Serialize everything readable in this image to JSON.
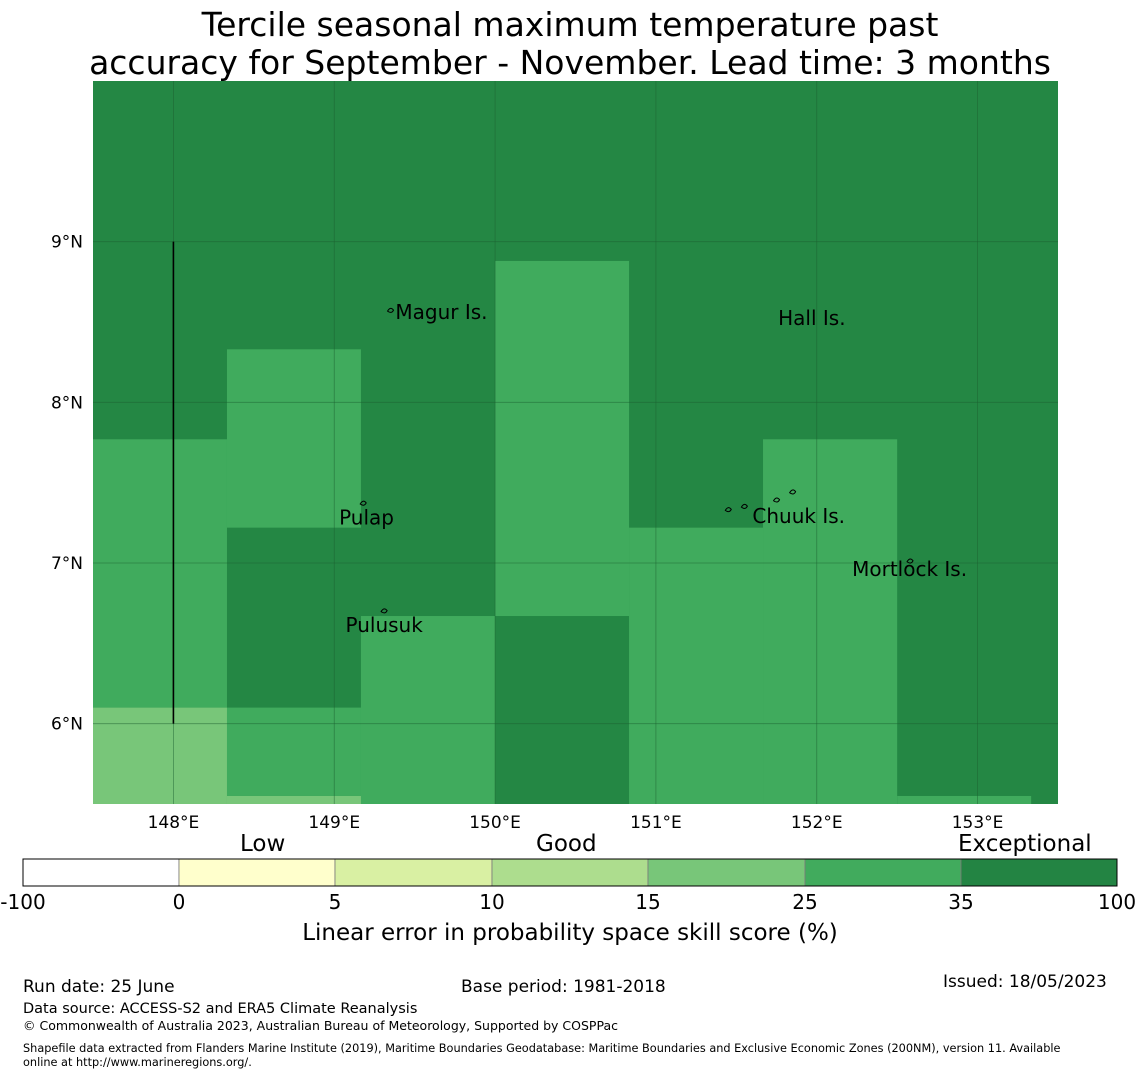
{
  "title_lines": [
    "Tercile seasonal maximum temperature past",
    "accuracy for September - November. Lead time: 3 months"
  ],
  "map": {
    "lon_range": [
      147.5,
      153.5
    ],
    "lat_range": [
      5.5,
      10.0
    ],
    "lon_ticks": [
      {
        "value": 148,
        "label": "148°E"
      },
      {
        "value": 149,
        "label": "149°E"
      },
      {
        "value": 150,
        "label": "150°E"
      },
      {
        "value": 151,
        "label": "151°E"
      },
      {
        "value": 152,
        "label": "152°E"
      },
      {
        "value": 153,
        "label": "153°E"
      }
    ],
    "lat_ticks": [
      {
        "value": 9,
        "label": "9°N"
      },
      {
        "value": 8,
        "label": "8°N"
      },
      {
        "value": 7,
        "label": "7°N"
      },
      {
        "value": 6,
        "label": "6°N"
      }
    ],
    "grid": true,
    "background_color": "#248744",
    "cells": [
      {
        "lon": [
          147.5,
          148.333
        ],
        "lat": [
          6.1,
          7.77
        ],
        "color": "#40ab5d"
      },
      {
        "lon": [
          148.333,
          149.166
        ],
        "lat": [
          7.22,
          8.33
        ],
        "color": "#40ab5d"
      },
      {
        "lon": [
          149.166,
          150.0
        ],
        "lat": [
          5.5,
          6.67
        ],
        "color": "#40ab5d"
      },
      {
        "lon": [
          148.333,
          149.166
        ],
        "lat": [
          5.55,
          6.1
        ],
        "color": "#40ab5d"
      },
      {
        "lon": [
          150.0,
          150.833
        ],
        "lat": [
          6.67,
          8.88
        ],
        "color": "#40ab5d"
      },
      {
        "lon": [
          150.833,
          151.666
        ],
        "lat": [
          5.5,
          7.22
        ],
        "color": "#40ab5d"
      },
      {
        "lon": [
          151.666,
          152.5
        ],
        "lat": [
          5.5,
          7.77
        ],
        "color": "#40ab5d"
      },
      {
        "lon": [
          152.5,
          153.333
        ],
        "lat": [
          5.5,
          5.55
        ],
        "color": "#40ab5d"
      },
      {
        "lon": [
          147.5,
          148.333
        ],
        "lat": [
          5.5,
          6.1
        ],
        "color": "#78c679"
      },
      {
        "lon": [
          148.333,
          149.166
        ],
        "lat": [
          5.5,
          5.55
        ],
        "color": "#78c679"
      }
    ],
    "boundary_line": {
      "lon": 148.0,
      "lat": [
        6.0,
        9.0
      ]
    },
    "places": [
      {
        "name": "Magur Is.",
        "lon": 149.38,
        "lat": 8.52
      },
      {
        "name": "Hall Is.",
        "lon": 151.76,
        "lat": 8.48
      },
      {
        "name": "Pulap",
        "lon": 149.03,
        "lat": 7.24
      },
      {
        "name": "Chuuk Is.",
        "lon": 151.6,
        "lat": 7.25
      },
      {
        "name": "Mortlock Is.",
        "lon": 152.22,
        "lat": 6.92
      },
      {
        "name": "Pulusuk",
        "lon": 149.07,
        "lat": 6.57
      }
    ]
  },
  "colorbar": {
    "categories": [
      {
        "label": "Low"
      },
      {
        "label": "Good"
      },
      {
        "label": "Exceptional"
      }
    ],
    "bins": [
      {
        "from": "-100",
        "to": "0",
        "color": "#ffffff"
      },
      {
        "from": "0",
        "to": "5",
        "color": "#ffffcc"
      },
      {
        "from": "5",
        "to": "10",
        "color": "#d9f0a3"
      },
      {
        "from": "10",
        "to": "15",
        "color": "#addd8e"
      },
      {
        "from": "15",
        "to": "25",
        "color": "#78c679"
      },
      {
        "from": "25",
        "to": "35",
        "color": "#41ab5d"
      },
      {
        "from": "35",
        "to": "100",
        "color": "#238443"
      }
    ],
    "tick_labels": [
      "-100",
      "0",
      "5",
      "10",
      "15",
      "25",
      "35",
      "100"
    ],
    "label": "Linear error in probability space skill score (%)"
  },
  "footer": {
    "run_date": "Run date: 25 June",
    "base_period": "Base period: 1981-2018",
    "issued": "Issued: 18/05/2023",
    "data_source": "Data source: ACCESS-S2 and ERA5 Climate Reanalysis",
    "copyright": "© Commonwealth of Australia 2023, Australian Bureau of Meteorology, Supported by COSPPac",
    "shapefile_line1": "Shapefile data extracted from Flanders Marine Institute (2019), Maritime Boundaries Geodatabase: Maritime Boundaries and Exclusive Economic Zones (200NM), version 11. Available",
    "shapefile_line2": "online at http://www.marineregions.org/."
  }
}
